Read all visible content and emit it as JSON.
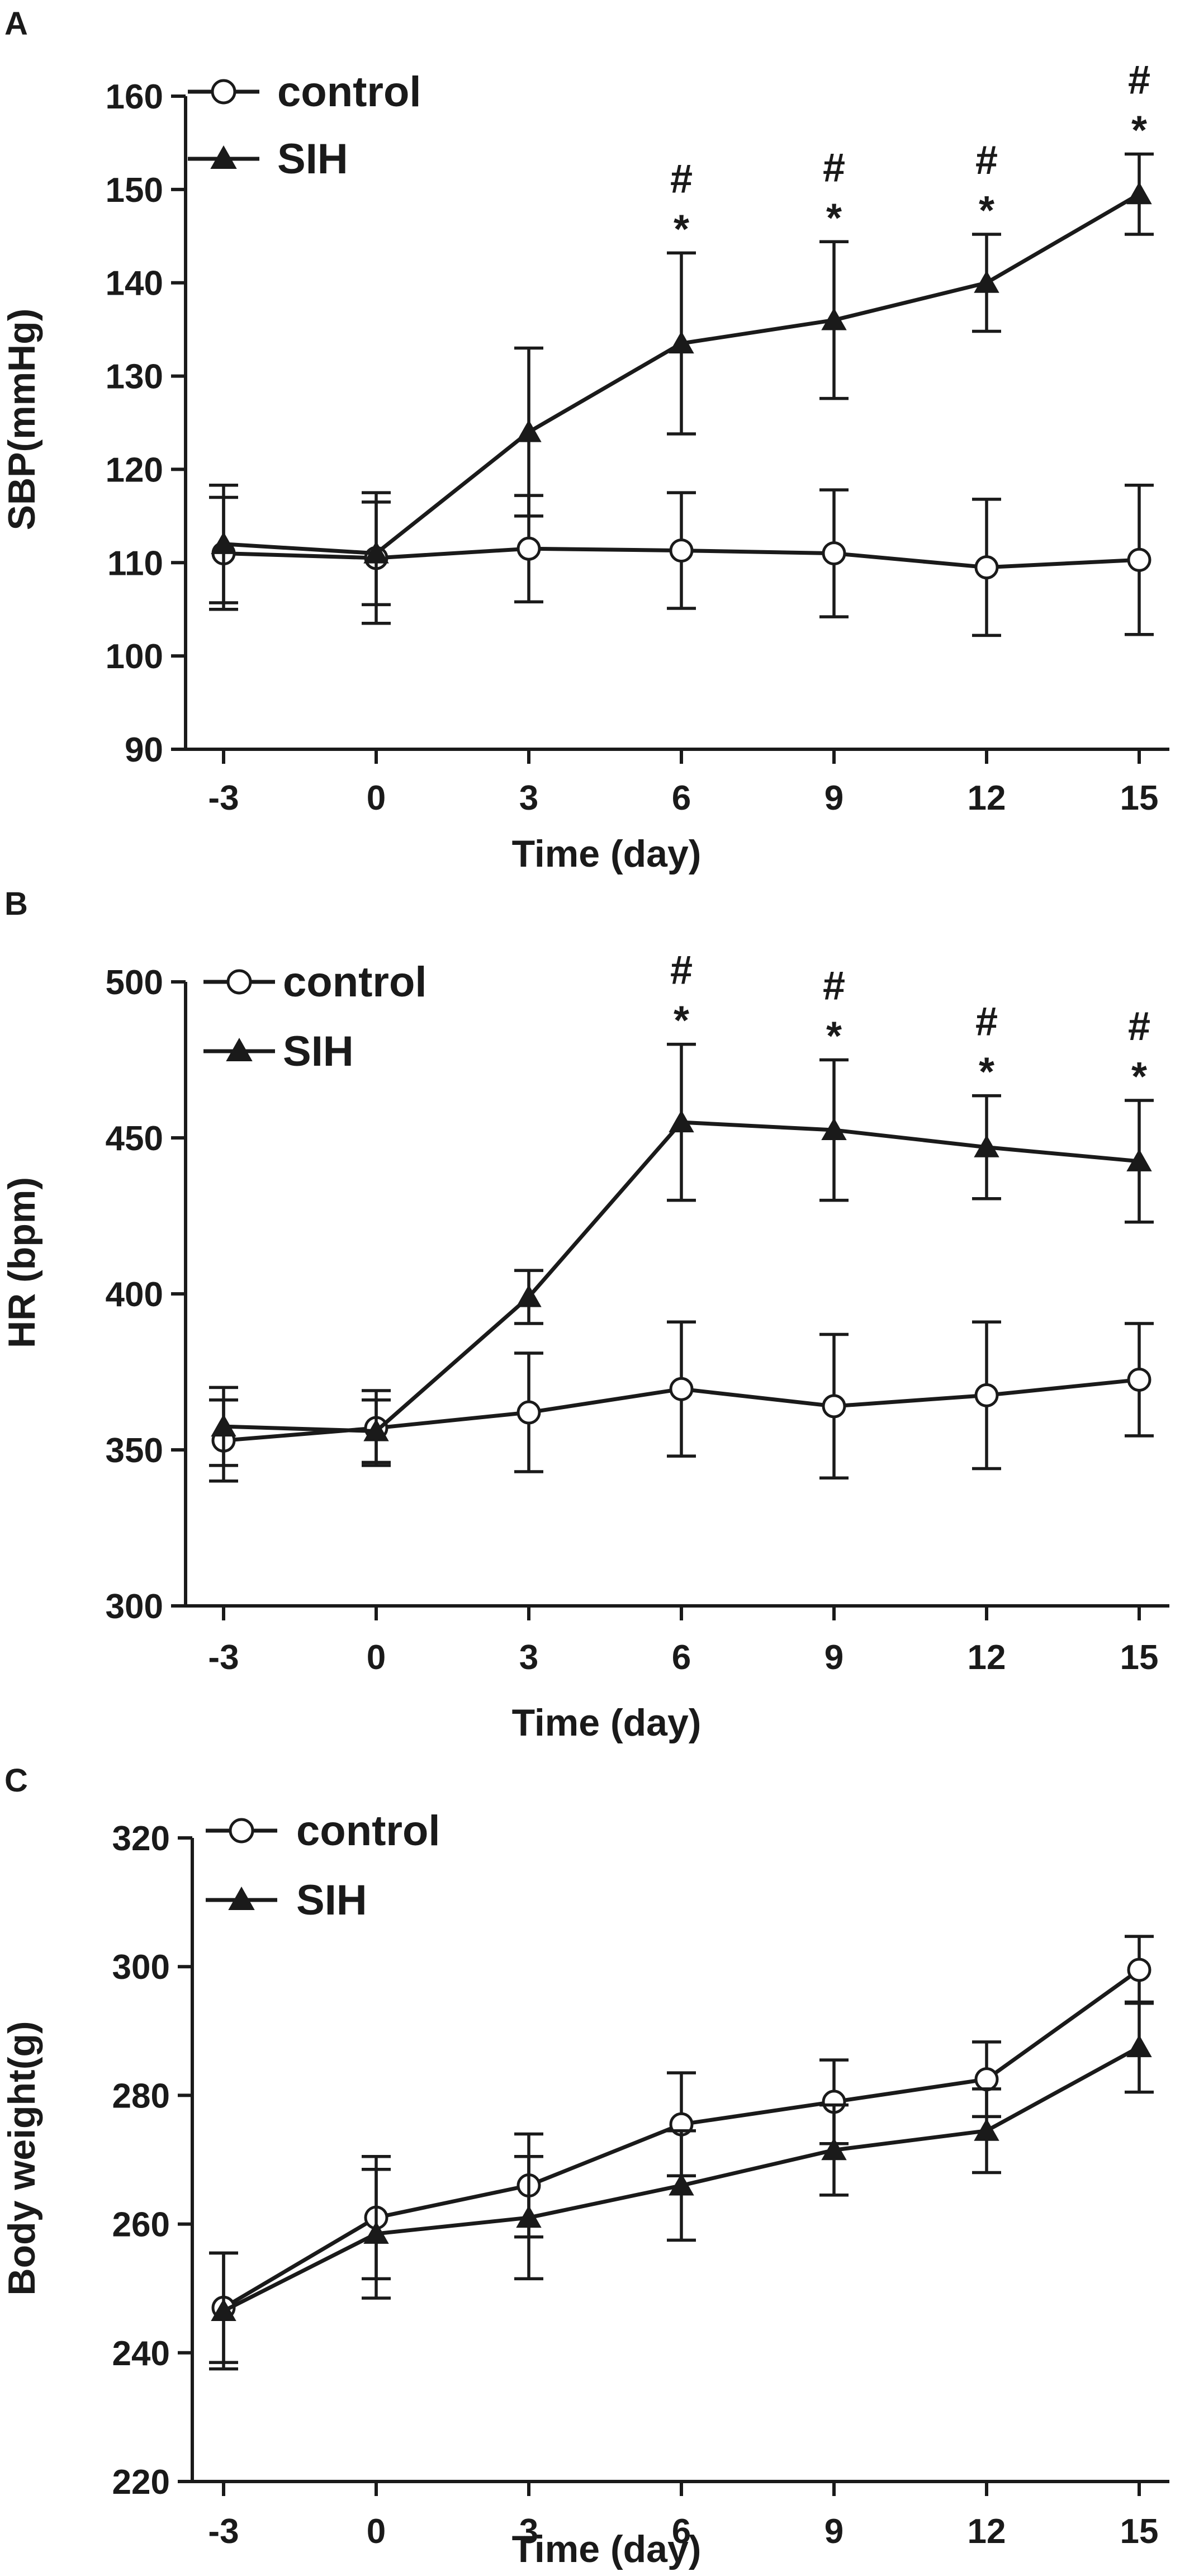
{
  "chart_data": [
    {
      "type": "line",
      "panel": "A",
      "title": "",
      "xlabel": "Time (day)",
      "ylabel": "SBP(mmHg)",
      "x": [
        -3,
        0,
        3,
        6,
        9,
        12,
        15
      ],
      "x_tick_labels": [
        "-3",
        "0",
        "3",
        "6",
        "9",
        "12",
        "15"
      ],
      "ylim": [
        90,
        160
      ],
      "y_ticks": [
        90,
        100,
        110,
        120,
        130,
        140,
        150,
        160
      ],
      "legend_position": "top-left",
      "series": [
        {
          "name": "control",
          "marker": "open-circle",
          "values": [
            111,
            110.5,
            111.5,
            111.3,
            111,
            109.5,
            110.3
          ],
          "error": [
            6,
            7,
            5.7,
            6.2,
            6.8,
            7.3,
            8
          ]
        },
        {
          "name": "SIH",
          "marker": "filled-triangle",
          "values": [
            112,
            111,
            124,
            133.5,
            136,
            140,
            149.5
          ],
          "error": [
            6.3,
            5.5,
            9,
            9.7,
            8.4,
            5.2,
            4.3
          ]
        }
      ],
      "annotations": [
        {
          "x": 6,
          "labels": [
            "#",
            "*"
          ]
        },
        {
          "x": 9,
          "labels": [
            "#",
            "*"
          ]
        },
        {
          "x": 12,
          "labels": [
            "#",
            "*"
          ]
        },
        {
          "x": 15,
          "labels": [
            "#",
            "*"
          ]
        }
      ]
    },
    {
      "type": "line",
      "panel": "B",
      "title": "",
      "xlabel": "Time (day)",
      "ylabel": "HR (bpm)",
      "x": [
        -3,
        0,
        3,
        6,
        9,
        12,
        15
      ],
      "x_tick_labels": [
        "-3",
        "0",
        "3",
        "6",
        "9",
        "12",
        "15"
      ],
      "ylim": [
        300,
        500
      ],
      "y_ticks": [
        300,
        350,
        400,
        450,
        500
      ],
      "legend_position": "top-left",
      "series": [
        {
          "name": "control",
          "marker": "open-circle",
          "values": [
            353,
            357,
            362,
            369.5,
            364,
            367.5,
            372.5
          ],
          "error": [
            13,
            12,
            19,
            21.5,
            23,
            23.5,
            18
          ]
        },
        {
          "name": "SIH",
          "marker": "filled-triangle",
          "values": [
            357.5,
            356,
            399,
            455,
            452.5,
            447,
            442.5
          ],
          "error": [
            12.5,
            10,
            8.5,
            25,
            22.5,
            16.5,
            19.5
          ]
        }
      ],
      "annotations": [
        {
          "x": 6,
          "labels": [
            "#",
            "*"
          ]
        },
        {
          "x": 9,
          "labels": [
            "#",
            "*"
          ]
        },
        {
          "x": 12,
          "labels": [
            "#",
            "*"
          ]
        },
        {
          "x": 15,
          "labels": [
            "#",
            "*"
          ]
        }
      ]
    },
    {
      "type": "line",
      "panel": "C",
      "title": "",
      "xlabel": "Time (day)",
      "ylabel": "Body weight(g)",
      "x": [
        -3,
        0,
        3,
        6,
        9,
        12,
        15
      ],
      "x_tick_labels": [
        "-3",
        "0",
        "3",
        "6",
        "9",
        "12",
        "15"
      ],
      "ylim": [
        220,
        320
      ],
      "y_ticks": [
        220,
        240,
        260,
        280,
        300,
        320
      ],
      "legend_position": "top-left",
      "series": [
        {
          "name": "control",
          "marker": "open-circle",
          "values": [
            247,
            261,
            266,
            275.5,
            279,
            282.5,
            299.5
          ],
          "error": [
            8.5,
            9.5,
            8,
            8,
            6.5,
            5.8,
            5.2
          ]
        },
        {
          "name": "SIH",
          "marker": "filled-triangle",
          "values": [
            246.5,
            258.5,
            261,
            266,
            271.5,
            274.5,
            287.5
          ],
          "error": [
            9,
            10,
            9.5,
            8.5,
            7,
            6.5,
            7
          ]
        }
      ],
      "annotations": []
    }
  ]
}
